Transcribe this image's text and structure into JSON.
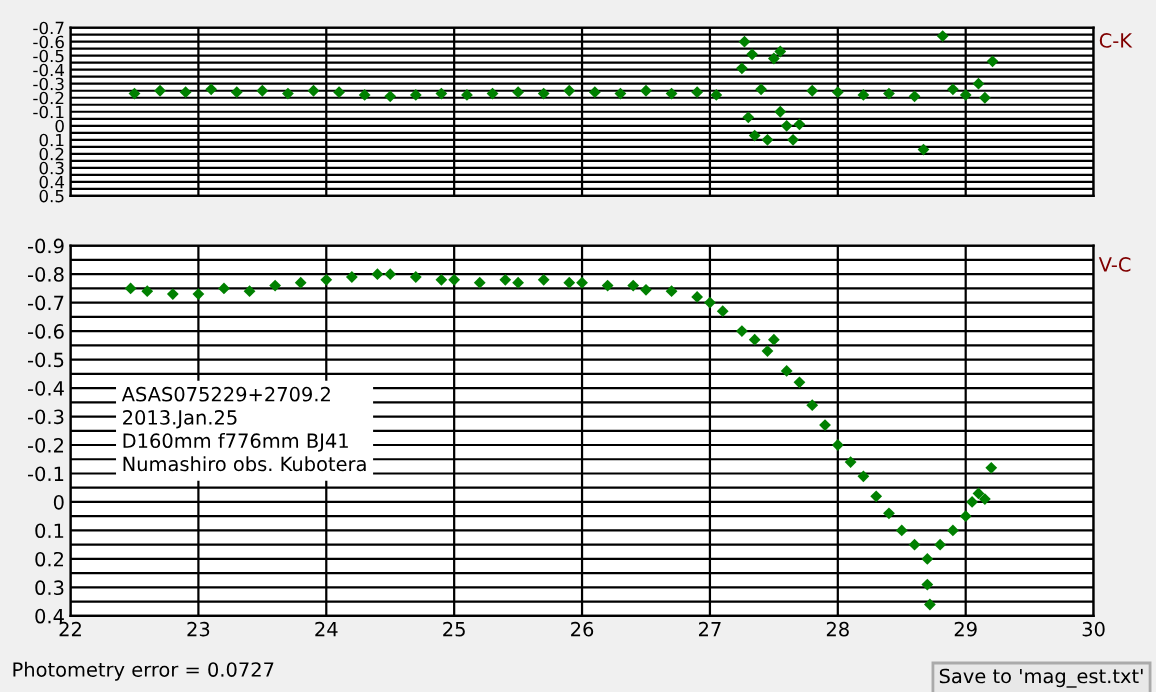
{
  "chart_data": [
    {
      "type": "scatter",
      "title": "C-K",
      "xlim": [
        22,
        30
      ],
      "ylim": [
        0.5,
        -0.7
      ],
      "marker": "diamond",
      "grid": true,
      "tick_labels": "y",
      "xticks": [
        22,
        23,
        24,
        25,
        26,
        27,
        28,
        29,
        30
      ],
      "yticks": [
        -0.7,
        {
          "value": -0.65,
          "label": null
        },
        -0.6,
        {
          "value": -0.55,
          "label": null
        },
        -0.5,
        {
          "value": -0.45,
          "label": null
        },
        -0.4,
        {
          "value": -0.35,
          "label": null
        },
        -0.3,
        {
          "value": -0.25,
          "label": null
        },
        -0.2,
        {
          "value": -0.15,
          "label": null
        },
        -0.1,
        {
          "value": -0.05,
          "label": null
        },
        0,
        {
          "value": 0.05,
          "label": null
        },
        0.1,
        {
          "value": 0.15,
          "label": null
        },
        0.2,
        {
          "value": 0.25,
          "label": null
        },
        0.3,
        {
          "value": 0.35,
          "label": null
        },
        0.4,
        {
          "value": 0.45,
          "label": null
        },
        0.5
      ],
      "series": [
        {
          "color": "#008000",
          "x": [
            22.5,
            22.7,
            22.9,
            23.1,
            23.3,
            23.5,
            23.7,
            23.9,
            24.1,
            24.3,
            24.5,
            24.7,
            24.9,
            25.1,
            25.3,
            25.5,
            25.7,
            25.9,
            26.1,
            26.3,
            26.5,
            26.7,
            26.9,
            27.05,
            27.27,
            27.25,
            27.33,
            27.55,
            27.5,
            27.3,
            27.35,
            27.45,
            27.6,
            27.65,
            27.7,
            27.4,
            27.55,
            27.8,
            28.0,
            28.2,
            28.4,
            28.6,
            28.82,
            28.67,
            28.9,
            29.0,
            29.1,
            29.21,
            29.15
          ],
          "values": [
            -0.23,
            -0.25,
            -0.24,
            -0.26,
            -0.24,
            -0.25,
            -0.23,
            -0.25,
            -0.24,
            -0.22,
            -0.21,
            -0.22,
            -0.23,
            -0.22,
            -0.23,
            -0.24,
            -0.23,
            -0.25,
            -0.24,
            -0.23,
            -0.25,
            -0.23,
            -0.24,
            -0.22,
            -0.6,
            -0.41,
            -0.51,
            -0.53,
            -0.48,
            -0.06,
            0.07,
            0.1,
            0.0,
            0.1,
            -0.01,
            -0.26,
            -0.1,
            -0.25,
            -0.24,
            -0.22,
            -0.23,
            -0.21,
            -0.64,
            0.17,
            -0.26,
            -0.22,
            -0.3,
            -0.46,
            -0.2
          ]
        }
      ]
    },
    {
      "type": "scatter",
      "title": "V-C",
      "xlim": [
        22,
        30
      ],
      "ylim": [
        0.4,
        -0.9
      ],
      "marker": "diamond",
      "grid": true,
      "xticks": [
        22,
        23,
        24,
        25,
        26,
        27,
        28,
        29,
        30
      ],
      "yticks": [
        -0.9,
        {
          "value": -0.85,
          "label": null
        },
        -0.8,
        {
          "value": -0.75,
          "label": null
        },
        -0.7,
        {
          "value": -0.65,
          "label": null
        },
        -0.6,
        {
          "value": -0.55,
          "label": null
        },
        -0.5,
        {
          "value": -0.45,
          "label": null
        },
        -0.4,
        {
          "value": -0.35,
          "label": null
        },
        -0.3,
        {
          "value": -0.25,
          "label": null
        },
        -0.2,
        {
          "value": -0.15,
          "label": null
        },
        -0.1,
        {
          "value": -0.05,
          "label": null
        },
        0,
        {
          "value": 0.05,
          "label": null
        },
        0.1,
        {
          "value": 0.15,
          "label": null
        },
        0.2,
        {
          "value": 0.25,
          "label": null
        },
        0.3,
        {
          "value": 0.35,
          "label": null
        },
        0.4
      ],
      "annotations": [
        "ASAS075229+2709.2\n2013.Jan.25\nD160mm f776mm BJ41\nNumashiro obs. Kubotera",
        "Photometry error = 0.0727",
        "Save to 'mag_est.txt'"
      ],
      "series": [
        {
          "color": "#008000",
          "x": [
            22.47,
            22.6,
            22.8,
            23.0,
            23.2,
            23.4,
            23.6,
            23.8,
            24.0,
            24.2,
            24.4,
            24.5,
            24.7,
            24.9,
            25.0,
            25.2,
            25.4,
            25.5,
            25.7,
            25.9,
            26.0,
            26.2,
            26.4,
            26.5,
            26.7,
            26.9,
            27.0,
            27.1,
            27.25,
            27.35,
            27.5,
            27.45,
            27.6,
            27.7,
            27.8,
            27.9,
            28.0,
            28.1,
            28.2,
            28.3,
            28.4,
            28.5,
            28.6,
            28.7,
            28.72,
            28.7,
            28.8,
            28.9,
            29.0,
            29.05,
            29.15,
            29.2,
            29.1
          ],
          "values": [
            -0.75,
            -0.74,
            -0.73,
            -0.73,
            -0.75,
            -0.74,
            -0.76,
            -0.77,
            -0.78,
            -0.79,
            -0.8,
            -0.8,
            -0.79,
            -0.78,
            -0.78,
            -0.77,
            -0.78,
            -0.77,
            -0.78,
            -0.77,
            -0.77,
            -0.76,
            -0.76,
            -0.745,
            -0.74,
            -0.72,
            -0.7,
            -0.67,
            -0.6,
            -0.57,
            -0.57,
            -0.53,
            -0.46,
            -0.42,
            -0.34,
            -0.27,
            -0.2,
            -0.14,
            -0.09,
            -0.02,
            0.04,
            0.1,
            0.15,
            0.29,
            0.36,
            0.2,
            0.15,
            0.1,
            0.05,
            0.0,
            -0.01,
            -0.12,
            -0.03
          ]
        }
      ]
    }
  ]
}
